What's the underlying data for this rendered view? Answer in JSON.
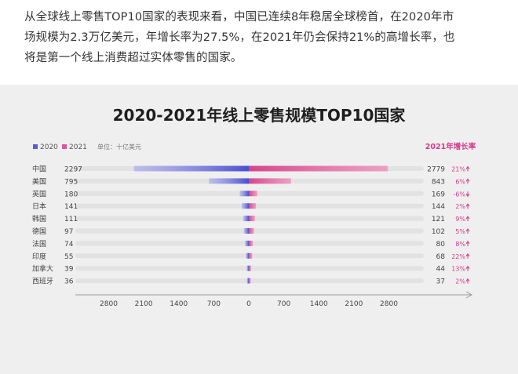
{
  "article": {
    "lines": [
      "从全球线上零售TOP10国家的表现来看，中国已连续8年稳居全球榜首，在2020年市",
      "场规模为2.3万亿美元，年增长率为27.5%，在2021年仍会保持21%的高增长率，也",
      "将是第一个线上消费超过实体零售的国家。"
    ]
  },
  "chart_data": {
    "type": "bar",
    "orientation": "horizontal-butterfly",
    "title": "2020-2021年线上零售规模TOP10国家",
    "unit_label": "单位：十亿美元",
    "growth_header": "2021年增长率",
    "categories": [
      "中国",
      "美国",
      "英国",
      "日本",
      "韩国",
      "德国",
      "法国",
      "印度",
      "加拿大",
      "西班牙"
    ],
    "series": [
      {
        "name": "2020",
        "values": [
          2297,
          795,
          180,
          141,
          111,
          97,
          74,
          55,
          39,
          36
        ]
      },
      {
        "name": "2021",
        "values": [
          2779,
          843,
          169,
          144,
          121,
          102,
          80,
          68,
          44,
          37
        ]
      }
    ],
    "growth": [
      "21%",
      "6%",
      "-6%",
      "2%",
      "9%",
      "5%",
      "8%",
      "22%",
      "13%",
      "2%"
    ],
    "x_ticks_left": [
      "2800",
      "2100",
      "1400",
      "700"
    ],
    "x_ticks_right": [
      "0",
      "700",
      "1400",
      "2100",
      "2800"
    ],
    "xlim": [
      -2800,
      2800
    ],
    "colors": {
      "2020": "#5a5fd6",
      "2021": "#e0559a",
      "growth_header": "#d63a8a",
      "track": "#e2e2e2"
    }
  }
}
